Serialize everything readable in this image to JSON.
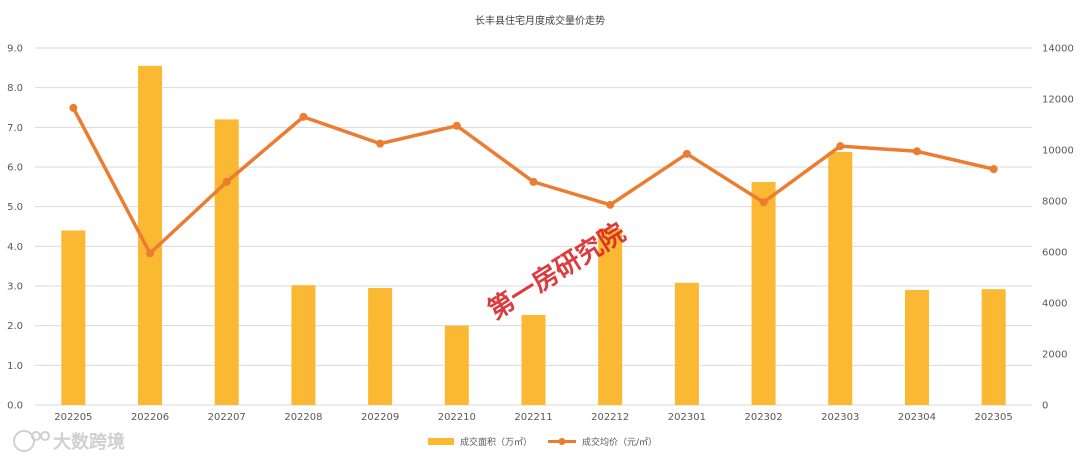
{
  "chart_data": {
    "type": "bar+line",
    "title": "长丰县住宅月度成交量价走势",
    "categories": [
      "202205",
      "202206",
      "202207",
      "202208",
      "202209",
      "202210",
      "202211",
      "202212",
      "202301",
      "202302",
      "202303",
      "202304",
      "202305"
    ],
    "series": [
      {
        "name": "成交面积（万㎡）",
        "type": "bar",
        "axis": "left",
        "values": [
          4.4,
          8.55,
          7.2,
          3.02,
          2.95,
          2.0,
          2.27,
          4.45,
          3.08,
          5.62,
          6.38,
          2.9,
          2.92
        ]
      },
      {
        "name": "成交均价（元/㎡）",
        "type": "line",
        "axis": "right",
        "values": [
          11650,
          5950,
          8750,
          11300,
          10250,
          10950,
          8750,
          7850,
          9850,
          7950,
          10150,
          9950,
          9250
        ]
      }
    ],
    "y_left": {
      "min": 0,
      "max": 9,
      "step": 1,
      "tick_labels": [
        "0.0",
        "1.0",
        "2.0",
        "3.0",
        "4.0",
        "5.0",
        "6.0",
        "7.0",
        "8.0",
        "9.0"
      ]
    },
    "y_right": {
      "min": 0,
      "max": 14000,
      "step": 2000,
      "tick_labels": [
        "0",
        "2000",
        "4000",
        "6000",
        "8000",
        "10000",
        "12000",
        "14000"
      ]
    },
    "grid": true,
    "legend_position": "bottom-center",
    "colors": {
      "bar": "#fbb832",
      "line": "#ec7c30",
      "grid": "#d9d9d9",
      "axis_text": "#595959"
    }
  },
  "overlay": {
    "watermark": "第一房研究院",
    "brand": "大数跨境"
  }
}
